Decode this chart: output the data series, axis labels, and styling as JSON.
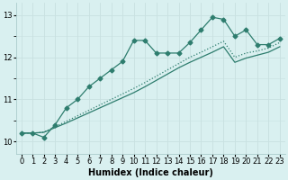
{
  "xlabel": "Humidex (Indice chaleur)",
  "bg_color": "#d9f0f0",
  "line_color": "#2e7d6e",
  "grid_color": "#c8e0e0",
  "xlim": [
    -0.5,
    23.5
  ],
  "ylim": [
    9.7,
    13.3
  ],
  "yticks": [
    10,
    11,
    12,
    13
  ],
  "xticks": [
    0,
    1,
    2,
    3,
    4,
    5,
    6,
    7,
    8,
    9,
    10,
    11,
    12,
    13,
    14,
    15,
    16,
    17,
    18,
    19,
    20,
    21,
    22,
    23
  ],
  "series1_x": [
    0,
    1,
    2,
    3,
    4,
    5,
    6,
    7,
    8,
    9,
    10,
    11,
    12,
    13,
    14,
    15,
    16,
    17,
    18,
    19,
    20,
    21,
    22,
    23
  ],
  "series1_y": [
    10.2,
    10.2,
    10.1,
    10.4,
    10.8,
    11.0,
    11.3,
    11.5,
    11.7,
    11.9,
    12.4,
    12.4,
    12.1,
    12.1,
    12.1,
    12.35,
    12.65,
    12.95,
    12.9,
    12.5,
    12.65,
    12.3,
    12.3,
    12.45
  ],
  "series2_x": [
    0,
    1,
    2,
    3,
    4,
    5,
    6,
    7,
    8,
    9,
    10,
    11,
    12,
    13,
    14,
    15,
    16,
    17,
    18,
    19,
    20,
    21,
    22,
    23
  ],
  "series2_y": [
    10.2,
    10.2,
    10.22,
    10.35,
    10.48,
    10.61,
    10.74,
    10.87,
    11.0,
    11.13,
    11.26,
    11.4,
    11.55,
    11.7,
    11.85,
    12.0,
    12.12,
    12.25,
    12.38,
    12.0,
    12.1,
    12.15,
    12.22,
    12.35
  ],
  "series3_x": [
    0,
    1,
    2,
    3,
    4,
    5,
    6,
    7,
    8,
    9,
    10,
    11,
    12,
    13,
    14,
    15,
    16,
    17,
    18,
    19,
    20,
    21,
    22,
    23
  ],
  "series3_y": [
    10.2,
    10.2,
    10.22,
    10.33,
    10.44,
    10.56,
    10.68,
    10.8,
    10.92,
    11.04,
    11.16,
    11.3,
    11.45,
    11.6,
    11.75,
    11.88,
    12.0,
    12.12,
    12.25,
    11.88,
    11.98,
    12.05,
    12.12,
    12.25
  ],
  "marker": "D",
  "marker_size": 2.5,
  "linewidth": 0.9,
  "xlabel_fontsize": 7,
  "tick_fontsize": 6
}
